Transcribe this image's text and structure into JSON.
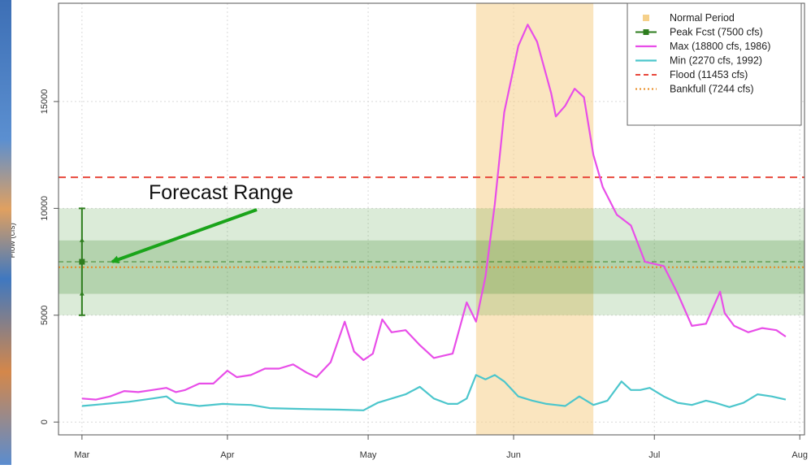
{
  "colors": {
    "normal_period": "#f5d08a",
    "peak": "#2e7d1e",
    "max": "#e84ee8",
    "min": "#4cc6cc",
    "flood": "#e8473b",
    "bankfull": "#e88a1e",
    "band_outer": "#4a9a3a",
    "band_inner": "#3f8a30",
    "arrow": "#1aa41a"
  },
  "annotation": {
    "text": "Forecast Range"
  },
  "chart_data": {
    "type": "line",
    "ylabel": "Flow (cfs)",
    "xlabel": "",
    "ylim": [
      -600,
      19600
    ],
    "xlim": [
      -5,
      154
    ],
    "x_unit": "days after Mar 1",
    "yticks": [
      0,
      5000,
      10000,
      15000
    ],
    "xticks": [
      {
        "label": "Mar",
        "x": 0
      },
      {
        "label": "Apr",
        "x": 31
      },
      {
        "label": "May",
        "x": 61
      },
      {
        "label": "Jun",
        "x": 92
      },
      {
        "label": "Jul",
        "x": 122
      },
      {
        "label": "Aug",
        "x": 153
      }
    ],
    "grid": true,
    "legend_position": "top-right",
    "normal_period": {
      "name": "Normal Period",
      "x_start": 84,
      "x_end": 109
    },
    "forecast_band": {
      "outer": [
        5000,
        10000
      ],
      "inner": [
        6000,
        8500
      ],
      "median": 7500
    },
    "peak_forecast": {
      "name": "Peak Fcst (7500 cfs)",
      "x": 0,
      "value": 7500,
      "range": [
        5000,
        10000
      ],
      "ticks": [
        6000,
        8500
      ]
    },
    "hlines": [
      {
        "name": "Flood (11453 cfs)",
        "value": 11453,
        "style": "dashed"
      },
      {
        "name": "Bankfull (7244 cfs)",
        "value": 7244,
        "style": "dotted"
      }
    ],
    "series": [
      {
        "name": "Max (18800 cfs, 1986)",
        "x": [
          0,
          3,
          6,
          9,
          12,
          15,
          18,
          20,
          22,
          25,
          28,
          31,
          33,
          36,
          39,
          42,
          45,
          48,
          50,
          53,
          56,
          58,
          60,
          62,
          64,
          66,
          69,
          72,
          75,
          77,
          79,
          82,
          84,
          86,
          88,
          90,
          93,
          95,
          97,
          100,
          101,
          103,
          105,
          107,
          109,
          111,
          114,
          117,
          120,
          124,
          127,
          130,
          133,
          136,
          137,
          139,
          142,
          145,
          148,
          150
        ],
        "values": [
          1100,
          1050,
          1200,
          1450,
          1400,
          1500,
          1600,
          1400,
          1500,
          1800,
          1800,
          2400,
          2100,
          2200,
          2500,
          2500,
          2700,
          2300,
          2100,
          2800,
          4700,
          3300,
          2900,
          3200,
          4800,
          4200,
          4300,
          3600,
          3000,
          3100,
          3200,
          5600,
          4700,
          6800,
          10200,
          14500,
          17600,
          18600,
          17800,
          15400,
          14300,
          14800,
          15600,
          15200,
          12500,
          11000,
          9700,
          9200,
          7500,
          7300,
          6000,
          4500,
          4600,
          6100,
          5100,
          4500,
          4200,
          4400,
          4300,
          4000
        ]
      },
      {
        "name": "Min (2270 cfs, 1992)",
        "x": [
          0,
          5,
          10,
          15,
          18,
          20,
          25,
          30,
          33,
          36,
          40,
          45,
          50,
          55,
          60,
          63,
          66,
          69,
          72,
          75,
          78,
          80,
          82,
          84,
          86,
          88,
          90,
          93,
          96,
          99,
          101,
          103,
          106,
          109,
          112,
          115,
          117,
          119,
          121,
          124,
          127,
          130,
          133,
          135,
          138,
          141,
          144,
          147,
          150
        ],
        "values": [
          750,
          850,
          950,
          1100,
          1200,
          900,
          750,
          850,
          820,
          800,
          650,
          620,
          600,
          580,
          550,
          900,
          1100,
          1300,
          1650,
          1100,
          850,
          850,
          1100,
          2200,
          2000,
          2200,
          1900,
          1200,
          1000,
          850,
          800,
          750,
          1200,
          800,
          1000,
          1900,
          1500,
          1500,
          1600,
          1200,
          900,
          800,
          1000,
          900,
          700,
          900,
          1300,
          1200,
          1050
        ]
      }
    ],
    "legend": [
      {
        "name": "Normal Period",
        "key": "normal_period"
      },
      {
        "name": "Peak Fcst (7500 cfs)",
        "key": "peak"
      },
      {
        "name": "Max (18800 cfs, 1986)",
        "key": "max"
      },
      {
        "name": "Min (2270 cfs, 1992)",
        "key": "min"
      },
      {
        "name": "Flood (11453 cfs)",
        "key": "flood"
      },
      {
        "name": "Bankfull (7244 cfs)",
        "key": "bankfull"
      }
    ]
  }
}
